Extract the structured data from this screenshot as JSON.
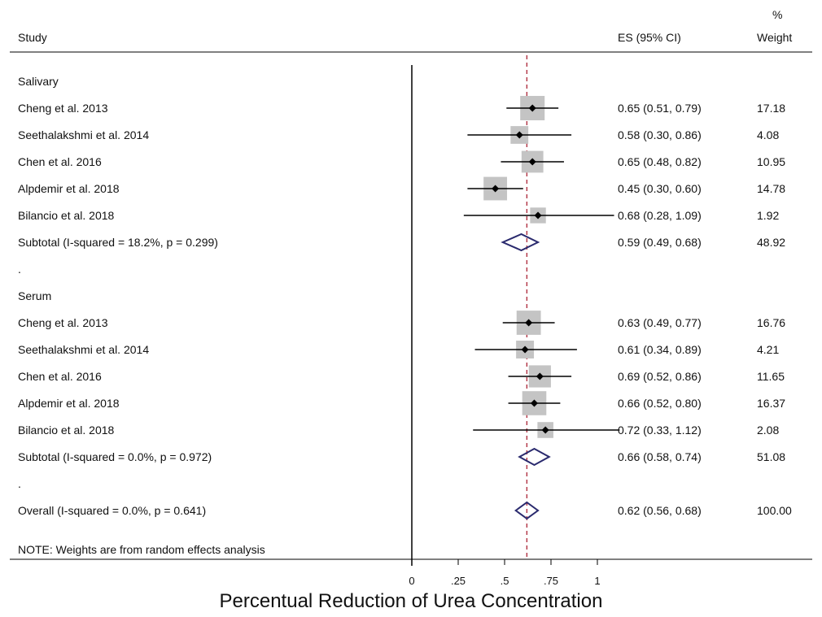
{
  "header": {
    "study": "Study",
    "es": "ES (95% CI)",
    "weight_pct": "%",
    "weight": "Weight"
  },
  "chart_data": {
    "type": "forest",
    "xlabel": "Percentual Reduction of Urea Concentration",
    "xticks": [
      "0",
      ".25",
      ".5",
      ".75",
      "1"
    ],
    "xtick_values": [
      0,
      0.25,
      0.5,
      0.75,
      1
    ],
    "xlim": [
      0,
      1
    ],
    "overall_reference": 0.62,
    "rows": [
      {
        "kind": "group",
        "label": "Salivary"
      },
      {
        "kind": "study",
        "label": "Cheng et al. 2013",
        "es": 0.65,
        "lo": 0.51,
        "hi": 0.79,
        "ci_text": "0.65 (0.51, 0.79)",
        "weight": "17.18"
      },
      {
        "kind": "study",
        "label": "Seethalakshmi et al. 2014",
        "es": 0.58,
        "lo": 0.3,
        "hi": 0.86,
        "ci_text": "0.58 (0.30, 0.86)",
        "weight": "4.08"
      },
      {
        "kind": "study",
        "label": "Chen et al. 2016",
        "es": 0.65,
        "lo": 0.48,
        "hi": 0.82,
        "ci_text": "0.65 (0.48, 0.82)",
        "weight": "10.95"
      },
      {
        "kind": "study",
        "label": "Alpdemir et al. 2018",
        "es": 0.45,
        "lo": 0.3,
        "hi": 0.6,
        "ci_text": "0.45 (0.30, 0.60)",
        "weight": "14.78"
      },
      {
        "kind": "study",
        "label": "Bilancio et al. 2018",
        "es": 0.68,
        "lo": 0.28,
        "hi": 1.09,
        "ci_text": "0.68 (0.28, 1.09)",
        "weight": "1.92"
      },
      {
        "kind": "subtotal",
        "label": "Subtotal  (I-squared = 18.2%, p = 0.299)",
        "es": 0.59,
        "lo": 0.49,
        "hi": 0.68,
        "ci_text": "0.59 (0.49, 0.68)",
        "weight": "48.92"
      },
      {
        "kind": "spacer",
        "label": "."
      },
      {
        "kind": "group",
        "label": "Serum"
      },
      {
        "kind": "study",
        "label": "Cheng et al. 2013",
        "es": 0.63,
        "lo": 0.49,
        "hi": 0.77,
        "ci_text": "0.63 (0.49, 0.77)",
        "weight": "16.76"
      },
      {
        "kind": "study",
        "label": "Seethalakshmi et al. 2014",
        "es": 0.61,
        "lo": 0.34,
        "hi": 0.89,
        "ci_text": "0.61 (0.34, 0.89)",
        "weight": "4.21"
      },
      {
        "kind": "study",
        "label": "Chen et al. 2016",
        "es": 0.69,
        "lo": 0.52,
        "hi": 0.86,
        "ci_text": "0.69 (0.52, 0.86)",
        "weight": "11.65"
      },
      {
        "kind": "study",
        "label": "Alpdemir et al. 2018",
        "es": 0.66,
        "lo": 0.52,
        "hi": 0.8,
        "ci_text": "0.66 (0.52, 0.80)",
        "weight": "16.37"
      },
      {
        "kind": "study",
        "label": "Bilancio et al. 2018",
        "es": 0.72,
        "lo": 0.33,
        "hi": 1.12,
        "ci_text": "0.72 (0.33, 1.12)",
        "weight": "2.08"
      },
      {
        "kind": "subtotal",
        "label": "Subtotal  (I-squared = 0.0%, p = 0.972)",
        "es": 0.66,
        "lo": 0.58,
        "hi": 0.74,
        "ci_text": "0.66 (0.58, 0.74)",
        "weight": "51.08"
      },
      {
        "kind": "spacer",
        "label": "."
      },
      {
        "kind": "overall",
        "label": "Overall  (I-squared = 0.0%, p = 0.641)",
        "es": 0.62,
        "lo": 0.56,
        "hi": 0.68,
        "ci_text": "0.62 (0.56, 0.68)",
        "weight": "100.00"
      }
    ],
    "note": "NOTE: Weights are from random effects analysis",
    "colors": {
      "weight_box": "#c4c4c4",
      "diamond": "#2a2a6e",
      "reference_line": "#b03040",
      "axis": "#000000"
    }
  }
}
